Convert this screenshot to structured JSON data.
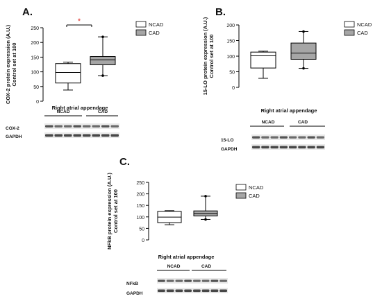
{
  "chart_data": [
    {
      "type": "box",
      "panel_label": "A.",
      "ylabel": "COX-2 protein expression (A.U.)",
      "ylabel2": "Control set at 100",
      "xlabel": "Right atrial appendage",
      "ylim": [
        0,
        250
      ],
      "yticks": [
        0,
        50,
        100,
        150,
        200,
        250
      ],
      "significance": "*",
      "series": [
        {
          "name": "NCAD",
          "min": 38,
          "q1": 62,
          "median": 98,
          "q3": 128,
          "max": 133,
          "color": "#ffffff"
        },
        {
          "name": "CAD",
          "min": 87,
          "q1": 124,
          "median": 141,
          "q3": 152,
          "max": 219,
          "color": "#a6a6a6"
        }
      ],
      "blot": {
        "groups": [
          "NCAD",
          "CAD"
        ],
        "rows": [
          "COX-2",
          "GAPDH"
        ]
      }
    },
    {
      "type": "box",
      "panel_label": "B.",
      "ylabel": "15-LO protein expression (A.U.)",
      "ylabel2": "Control set at 100",
      "xlabel": "Right atrial appendage",
      "ylim": [
        0,
        200
      ],
      "yticks": [
        0,
        50,
        100,
        150,
        200
      ],
      "significance": "",
      "series": [
        {
          "name": "NCAD",
          "min": 29,
          "q1": 62,
          "median": 101,
          "q3": 113,
          "max": 116,
          "color": "#ffffff"
        },
        {
          "name": "CAD",
          "min": 61,
          "q1": 90,
          "median": 110,
          "q3": 142,
          "max": 179,
          "color": "#a6a6a6"
        }
      ],
      "blot": {
        "groups": [
          "NCAD",
          "CAD"
        ],
        "rows": [
          "15-LO",
          "GAPDH"
        ]
      }
    },
    {
      "type": "box",
      "panel_label": "C.",
      "ylabel": "NFkB protein expression (A.U.)",
      "ylabel2": "Control set at 100",
      "xlabel": "Right atrial appendage",
      "ylim": [
        0,
        250
      ],
      "yticks": [
        0,
        50,
        100,
        150,
        200,
        250
      ],
      "significance": "",
      "series": [
        {
          "name": "NCAD",
          "min": 66,
          "q1": 75,
          "median": 99,
          "q3": 124,
          "max": 127,
          "color": "#ffffff"
        },
        {
          "name": "CAD",
          "min": 89,
          "q1": 104,
          "median": 115,
          "q3": 126,
          "max": 190,
          "color": "#a6a6a6"
        }
      ],
      "blot": {
        "groups": [
          "NCAD",
          "CAD"
        ],
        "rows": [
          "NFkB",
          "GAPDH"
        ]
      }
    }
  ],
  "colors": {
    "significance": "#e0302a",
    "cad_fill": "#a6a6a6",
    "ncad_fill": "#ffffff"
  }
}
